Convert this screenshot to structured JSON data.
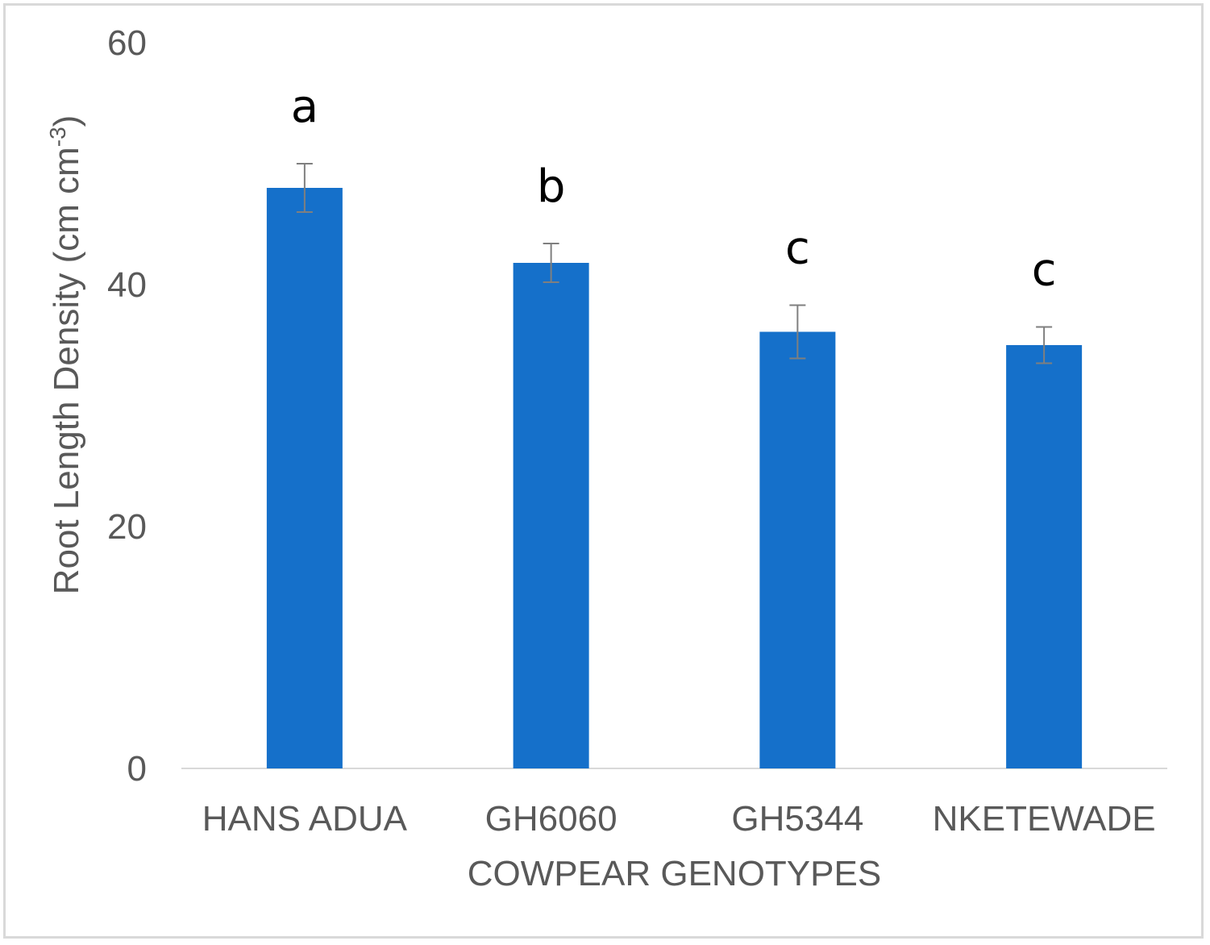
{
  "chart_data": {
    "type": "bar",
    "title": "",
    "xlabel": "COWPEAR GENOTYPES",
    "ylabel": "Root Length  Density (cm cm",
    "ylabel_superscript": "-3",
    "ylabel_suffix": ")",
    "ylim": [
      0,
      60
    ],
    "yticks": [
      "0",
      "20",
      "40",
      "60"
    ],
    "categories": [
      "HANS ADUA",
      "GH6060",
      "GH5344",
      "NKETEWADE"
    ],
    "values": [
      48,
      41.8,
      36.1,
      35
    ],
    "error": [
      2.0,
      1.6,
      2.2,
      1.5
    ],
    "significance_letters": [
      "a",
      "b",
      "c",
      "c"
    ],
    "bar_color": "#1570CA",
    "errorbar_color": "#7f7f7f",
    "grid": false,
    "legend": "none"
  }
}
